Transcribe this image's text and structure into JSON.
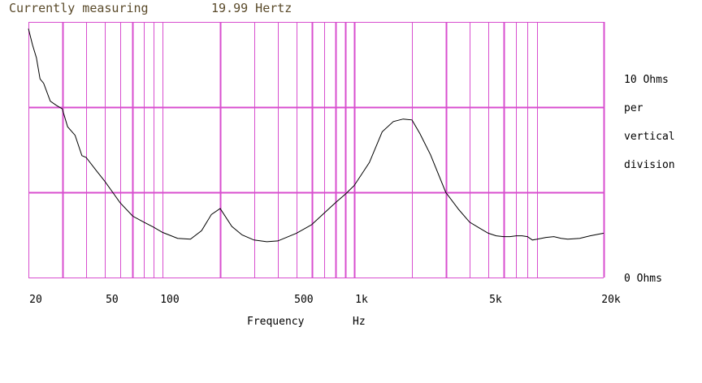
{
  "status": {
    "label": "Currently measuring",
    "value": "19.99 Hertz"
  },
  "colors": {
    "grid": "#d84fcf",
    "curve": "#000000",
    "status_text": "#5a4a2a"
  },
  "chart_data": {
    "type": "line",
    "title": "",
    "xlabel_parts": [
      "Frequency",
      "Hz"
    ],
    "x_scale": "log",
    "xlim": [
      20,
      20000
    ],
    "ylim": [
      0,
      30
    ],
    "grid": true,
    "x_tick_labels": [
      "20",
      "50",
      "100",
      "500",
      "1k",
      "5k",
      "20k"
    ],
    "x_tick_values": [
      20,
      50,
      100,
      500,
      1000,
      5000,
      20000
    ],
    "minor_grid_x": [
      30,
      40,
      50,
      60,
      70,
      80,
      90,
      100,
      200,
      300,
      400,
      500,
      600,
      700,
      800,
      900,
      1000,
      2000,
      3000,
      4000,
      5000,
      6000,
      7000,
      8000,
      9000,
      20000
    ],
    "major_grid_x": [
      30,
      70,
      200,
      600,
      800,
      900,
      1000,
      3000,
      6000
    ],
    "major_grid_y": [
      0,
      10,
      20,
      30
    ],
    "right_labels": {
      "top": "10 Ohms",
      "lines": [
        "per",
        "vertical",
        "division"
      ],
      "bottom": "0 Ohms"
    },
    "series": [
      {
        "x": [
          20,
          21,
          22,
          23,
          24,
          26,
          28,
          30,
          32,
          35,
          38,
          40,
          45,
          50,
          55,
          60,
          70,
          80,
          90,
          100,
          120,
          140,
          160,
          180,
          200,
          230,
          260,
          300,
          350,
          400,
          500,
          600,
          700,
          800,
          900,
          1000,
          1200,
          1400,
          1600,
          1800,
          2000,
          2200,
          2500,
          3000,
          3500,
          4000,
          4500,
          5000,
          5500,
          6000,
          6500,
          7000,
          7500,
          8000,
          8500,
          9000,
          10000,
          11000,
          12000,
          13000,
          15000,
          17000,
          20000
        ],
        "y": [
          29.2,
          27.3,
          25.8,
          23.3,
          22.8,
          20.7,
          20.2,
          19.8,
          17.7,
          16.7,
          14.3,
          14.1,
          12.6,
          11.3,
          10.0,
          8.8,
          7.2,
          6.5,
          5.9,
          5.3,
          4.6,
          4.5,
          5.5,
          7.4,
          8.1,
          6.0,
          5.0,
          4.4,
          4.2,
          4.3,
          5.2,
          6.2,
          7.6,
          8.8,
          9.8,
          10.8,
          13.5,
          17.1,
          18.3,
          18.6,
          18.5,
          16.9,
          14.4,
          10.0,
          8.0,
          6.5,
          5.8,
          5.2,
          4.9,
          4.8,
          4.8,
          4.9,
          4.9,
          4.8,
          4.4,
          4.5,
          4.7,
          4.8,
          4.6,
          4.5,
          4.6,
          4.9,
          5.2
        ]
      }
    ]
  }
}
